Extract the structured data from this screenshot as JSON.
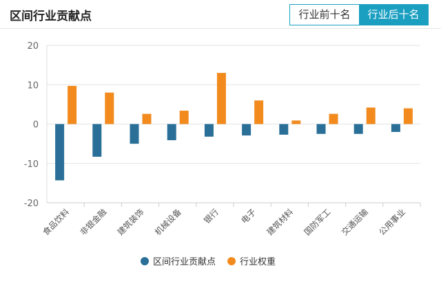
{
  "header": {
    "title": "区间行业贡献点",
    "tabs": [
      {
        "label": "行业前十名",
        "active": false
      },
      {
        "label": "行业后十名",
        "active": true
      }
    ]
  },
  "chart_data": {
    "type": "bar",
    "categories": [
      "食品饮料",
      "非银金融",
      "建筑装饰",
      "机械设备",
      "银行",
      "电子",
      "建筑材料",
      "国防军工",
      "交通运输",
      "公用事业"
    ],
    "series": [
      {
        "name": "区间行业贡献点",
        "color": "#2a6f97",
        "values": [
          -14.3,
          -8.3,
          -5.0,
          -4.1,
          -3.2,
          -2.9,
          -2.7,
          -2.5,
          -2.5,
          -2.0
        ]
      },
      {
        "name": "行业权重",
        "color": "#f28a1e",
        "values": [
          9.7,
          8.0,
          2.6,
          3.4,
          13.0,
          6.0,
          0.9,
          2.6,
          4.2,
          4.0
        ]
      }
    ],
    "ylim": [
      -20,
      20
    ],
    "yticks": [
      20,
      10,
      0,
      -10,
      -20
    ],
    "legend": "bottom",
    "grid": true
  }
}
